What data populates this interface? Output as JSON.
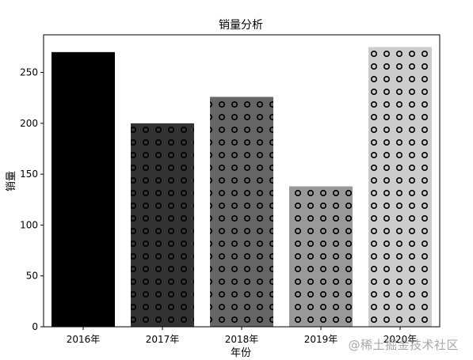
{
  "chart_data": {
    "type": "bar",
    "title": "销量分析",
    "xlabel": "年份",
    "ylabel": "销量",
    "categories": [
      "2016年",
      "2017年",
      "2018年",
      "2019年",
      "2020年"
    ],
    "values": [
      270,
      200,
      226,
      138,
      275
    ],
    "ylim": [
      0,
      287
    ],
    "yticks": [
      0,
      50,
      100,
      150,
      200,
      250
    ],
    "grid": false,
    "bar_colors": [
      "#000000",
      "#333333",
      "#666666",
      "#999999",
      "#cccccc"
    ],
    "bar_hatch": [
      "none",
      "circles",
      "circles",
      "circles",
      "circles"
    ]
  },
  "watermark": "@稀土掘金技术社区"
}
